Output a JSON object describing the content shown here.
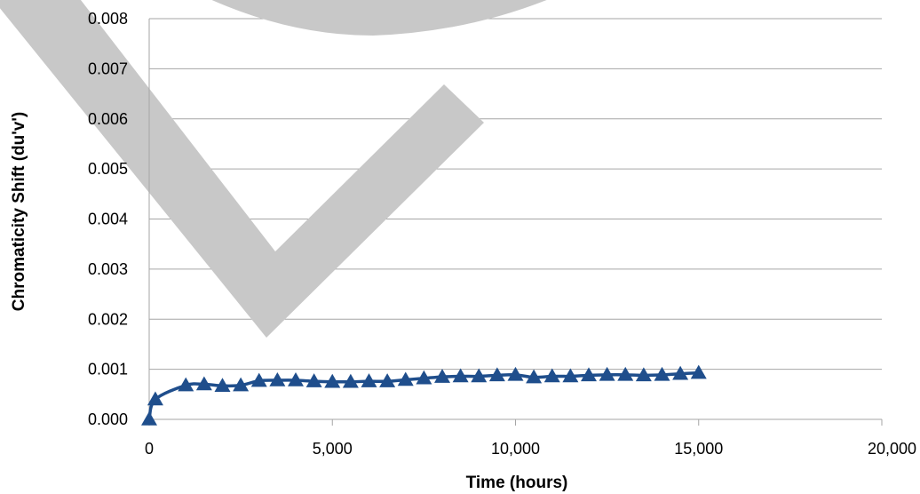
{
  "chart_data": {
    "type": "line",
    "title": "",
    "xlabel": "Time (hours)",
    "ylabel": "Chromaticity Shift (du'v')",
    "xlim": [
      0,
      20000
    ],
    "ylim": [
      0,
      0.008
    ],
    "x_ticks": [
      0,
      5000,
      10000,
      15000,
      20000
    ],
    "x_tick_labels": [
      "0",
      "5,000",
      "10,000",
      "15,000",
      "20,000"
    ],
    "y_ticks": [
      0,
      0.001,
      0.002,
      0.003,
      0.004,
      0.005,
      0.006,
      0.007,
      0.008
    ],
    "y_tick_labels": [
      "0.000",
      "0.001",
      "0.002",
      "0.003",
      "0.004",
      "0.005",
      "0.006",
      "0.007",
      "0.008"
    ],
    "grid": "horizontal",
    "legend": "none",
    "series": [
      {
        "marker": "triangle",
        "color": "#1f4e8c",
        "x": [
          0,
          168,
          1000,
          1500,
          2000,
          2500,
          3000,
          3500,
          4000,
          4500,
          5000,
          5500,
          6000,
          6500,
          7000,
          7500,
          8000,
          8500,
          9000,
          9500,
          10000,
          10500,
          11000,
          11500,
          12000,
          12500,
          13000,
          13500,
          14000,
          14500,
          15000
        ],
        "y": [
          0.0,
          0.0004,
          0.00068,
          0.0007,
          0.00067,
          0.00068,
          0.00077,
          0.00078,
          0.00078,
          0.00076,
          0.00075,
          0.00075,
          0.00076,
          0.00076,
          0.00079,
          0.00082,
          0.00085,
          0.00086,
          0.00086,
          0.00088,
          0.00089,
          0.00084,
          0.00086,
          0.00086,
          0.00088,
          0.00089,
          0.00089,
          0.00088,
          0.00089,
          0.00091,
          0.00093
        ]
      }
    ]
  },
  "watermark": {
    "shape": "check-mark",
    "color": "#c8c8c8"
  }
}
